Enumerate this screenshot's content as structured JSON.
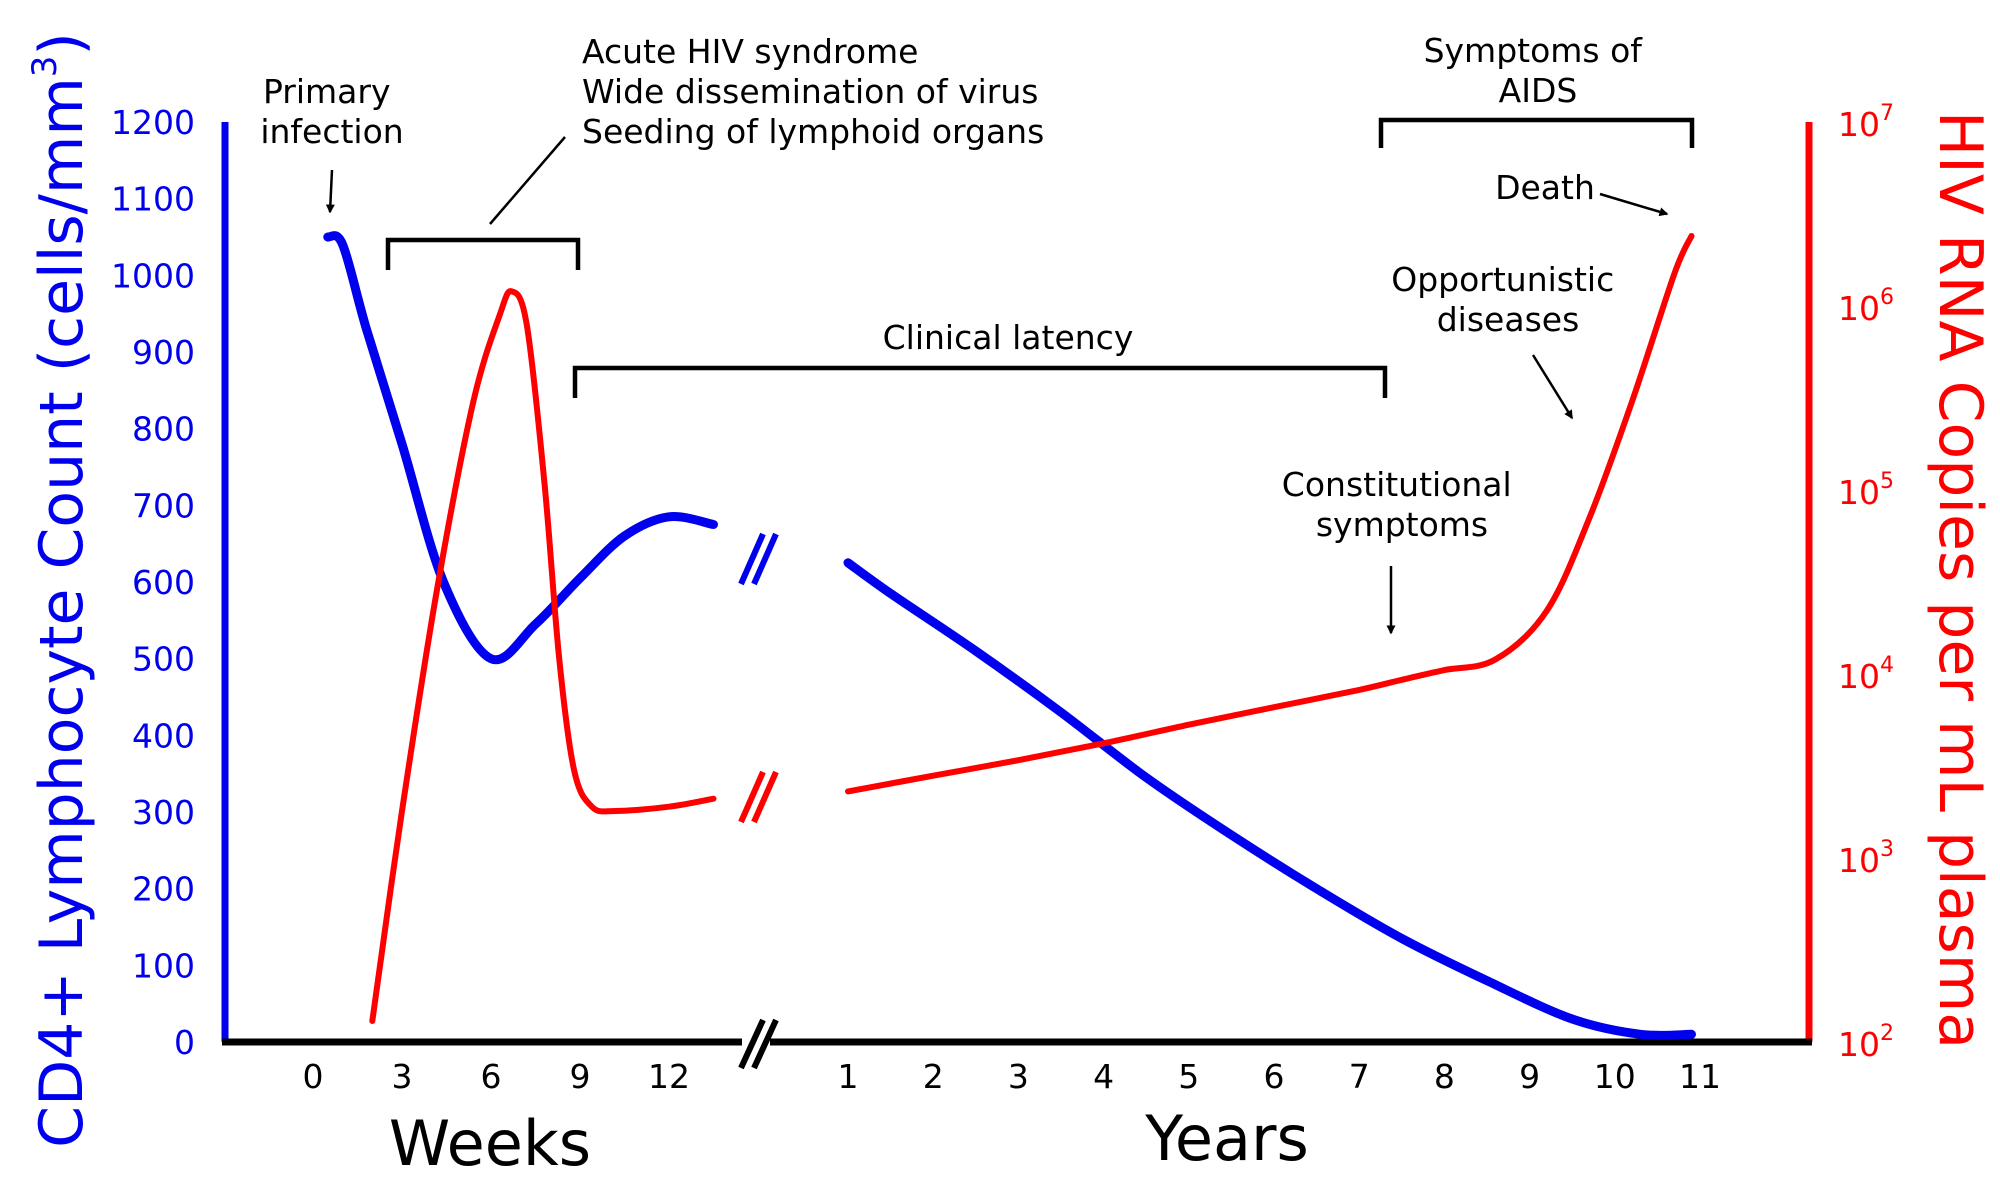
{
  "chart_data": {
    "type": "line",
    "y_left": {
      "label": "CD4+ Lymphocyte Count (cells/mm",
      "label_sup": "3",
      "label_end": ")",
      "range": [
        0,
        1200
      ],
      "ticks": [
        "0",
        "100",
        "200",
        "300",
        "400",
        "500",
        "600",
        "700",
        "800",
        "900",
        "1000",
        "1100",
        "1200"
      ],
      "color": "#0000ee"
    },
    "y_right": {
      "label": "HIV RNA Copies per mL plasma",
      "scale": "log",
      "range": [
        100,
        10000000
      ],
      "ticks": [
        {
          "base": "10",
          "exp": "2"
        },
        {
          "base": "10",
          "exp": "3"
        },
        {
          "base": "10",
          "exp": "4"
        },
        {
          "base": "10",
          "exp": "5"
        },
        {
          "base": "10",
          "exp": "6"
        },
        {
          "base": "10",
          "exp": "7"
        }
      ],
      "color": "#ff0000"
    },
    "x_axis": {
      "weeks_label": "Weeks",
      "weeks_ticks": [
        "0",
        "3",
        "6",
        "9",
        "12"
      ],
      "years_label": "Years",
      "years_ticks": [
        "1",
        "2",
        "3",
        "4",
        "5",
        "6",
        "7",
        "8",
        "9",
        "10",
        "11"
      ],
      "axis_break": true
    },
    "series": [
      {
        "label": "CD4+",
        "color": "#0000ee",
        "weeks": [
          [
            0.5,
            1050
          ],
          [
            1,
            1040
          ],
          [
            1.8,
            930
          ],
          [
            3,
            780
          ],
          [
            4.4,
            600
          ],
          [
            6,
            500
          ],
          [
            7.5,
            545
          ],
          [
            9,
            605
          ],
          [
            10.5,
            660
          ],
          [
            12,
            685
          ],
          [
            13.5,
            675
          ]
        ],
        "years": [
          [
            1,
            625
          ],
          [
            1.5,
            585
          ],
          [
            2.5,
            510
          ],
          [
            3.5,
            430
          ],
          [
            4.5,
            345
          ],
          [
            5.5,
            270
          ],
          [
            6.5,
            200
          ],
          [
            7.5,
            135
          ],
          [
            8.5,
            80
          ],
          [
            9.5,
            30
          ],
          [
            10.3,
            10
          ],
          [
            10.9,
            10
          ]
        ]
      },
      {
        "label": "HIV RNA",
        "color": "#ff0000",
        "weeks": [
          [
            2.0,
            130
          ],
          [
            3.0,
            1800
          ],
          [
            4.2,
            30000
          ],
          [
            5.4,
            300000
          ],
          [
            6.3,
            900000
          ],
          [
            6.7,
            1200000
          ],
          [
            7.2,
            800000
          ],
          [
            7.8,
            110000
          ],
          [
            8.3,
            12000
          ],
          [
            8.8,
            3000
          ],
          [
            9.4,
            1900
          ],
          [
            10.2,
            1800
          ],
          [
            12,
            1900
          ],
          [
            13.5,
            2100
          ]
        ],
        "years": [
          [
            1,
            2300
          ],
          [
            2,
            2800
          ],
          [
            3,
            3400
          ],
          [
            4,
            4200
          ],
          [
            5,
            5300
          ],
          [
            6,
            6600
          ],
          [
            7,
            8200
          ],
          [
            7.5,
            9300
          ],
          [
            8,
            10500
          ],
          [
            8.6,
            12000
          ],
          [
            9.2,
            22000
          ],
          [
            9.7,
            70000
          ],
          [
            10.2,
            300000
          ],
          [
            10.7,
            1500000
          ],
          [
            10.9,
            2400000
          ]
        ]
      }
    ],
    "annotations": {
      "primary_infection": [
        "Primary",
        "infection"
      ],
      "acute": [
        "Acute HIV syndrome",
        "Wide dissemination of virus",
        "Seeding of lymphoid organs"
      ],
      "latency": "Clinical latency",
      "aids": [
        "Symptoms of",
        "AIDS"
      ],
      "death": "Death",
      "opportunistic": [
        "Opportunistic",
        "diseases"
      ],
      "constitutional": [
        "Constitutional",
        "symptoms"
      ]
    }
  }
}
